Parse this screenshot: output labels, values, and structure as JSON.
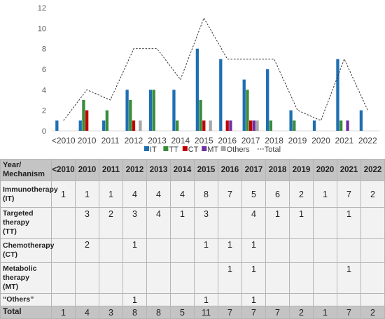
{
  "chart_data": {
    "type": "bar",
    "categories": [
      "<2010",
      "2010",
      "2011",
      "2012",
      "2013",
      "2014",
      "2015",
      "2016",
      "2017",
      "2018",
      "2019",
      "2020",
      "2021",
      "2022"
    ],
    "series": [
      {
        "name": "IT",
        "color": "#1f6fb2",
        "values": [
          1,
          1,
          1,
          4,
          4,
          4,
          8,
          7,
          5,
          6,
          2,
          1,
          7,
          2
        ]
      },
      {
        "name": "TT",
        "color": "#3a8c3a",
        "values": [
          0,
          3,
          2,
          3,
          4,
          1,
          3,
          0,
          4,
          1,
          1,
          0,
          1,
          0
        ]
      },
      {
        "name": "CT",
        "color": "#c00000",
        "values": [
          0,
          2,
          0,
          1,
          0,
          0,
          1,
          1,
          1,
          0,
          0,
          0,
          0,
          0
        ]
      },
      {
        "name": "MT",
        "color": "#7030a0",
        "values": [
          0,
          0,
          0,
          0,
          0,
          0,
          0,
          1,
          1,
          0,
          0,
          0,
          1,
          0
        ]
      },
      {
        "name": "Others",
        "color": "#a6a6a6",
        "values": [
          0,
          0,
          0,
          1,
          0,
          0,
          1,
          0,
          1,
          0,
          0,
          0,
          0,
          0
        ]
      }
    ],
    "total": {
      "name": "Total",
      "values": [
        1,
        4,
        3,
        8,
        8,
        5,
        11,
        7,
        7,
        7,
        2,
        1,
        7,
        2
      ]
    },
    "ylim": [
      0,
      12
    ],
    "yticks": [
      0,
      2,
      4,
      6,
      8,
      10,
      12
    ],
    "legend": [
      {
        "label": "IT",
        "kind": "box",
        "color": "#1f6fb2"
      },
      {
        "label": "TT",
        "kind": "box",
        "color": "#3a8c3a"
      },
      {
        "label": "CT",
        "kind": "box",
        "color": "#c00000"
      },
      {
        "label": "MT",
        "kind": "box",
        "color": "#7030a0"
      },
      {
        "label": "Others",
        "kind": "box",
        "color": "#a6a6a6"
      },
      {
        "label": "Total",
        "kind": "line",
        "color": "#333333"
      }
    ],
    "legend_placement": "bottom",
    "grid": false
  },
  "table": {
    "header_label": [
      "Year/",
      "Mechanism"
    ],
    "years": [
      "<2010",
      "2010",
      "2011",
      "2012",
      "2013",
      "2014",
      "2015",
      "2016",
      "2017",
      "2018",
      "2019",
      "2020",
      "2021",
      "2022"
    ],
    "rows": [
      {
        "label": [
          "Immunotherapy",
          "(IT)"
        ],
        "cells": [
          "1",
          "1",
          "1",
          "4",
          "4",
          "4",
          "8",
          "7",
          "5",
          "6",
          "2",
          "1",
          "7",
          "2"
        ]
      },
      {
        "label": [
          "Targeted",
          "therapy",
          "(TT)"
        ],
        "cells": [
          "",
          "3",
          "2",
          "3",
          "4",
          "1",
          "3",
          "",
          "4",
          "1",
          "1",
          "",
          "1",
          ""
        ]
      },
      {
        "label": [
          "Chemotherapy",
          "(CT)"
        ],
        "cells": [
          "",
          "2",
          "",
          "1",
          "",
          "",
          "1",
          "1",
          "1",
          "",
          "",
          "",
          "",
          ""
        ]
      },
      {
        "label": [
          "Metabolic",
          "therapy",
          "(MT)"
        ],
        "cells": [
          "",
          "",
          "",
          "",
          "",
          "",
          "",
          "1",
          "1",
          "",
          "",
          "",
          "1",
          ""
        ]
      },
      {
        "label": [
          "“Others”"
        ],
        "cells": [
          "",
          "",
          "",
          "1",
          "",
          "",
          "1",
          "",
          "1",
          "",
          "",
          "",
          "",
          ""
        ]
      }
    ],
    "total_row": {
      "label": "Total",
      "cells": [
        "1",
        "4",
        "3",
        "8",
        "8",
        "5",
        "11",
        "7",
        "7",
        "7",
        "2",
        "1",
        "7",
        "2"
      ]
    }
  }
}
